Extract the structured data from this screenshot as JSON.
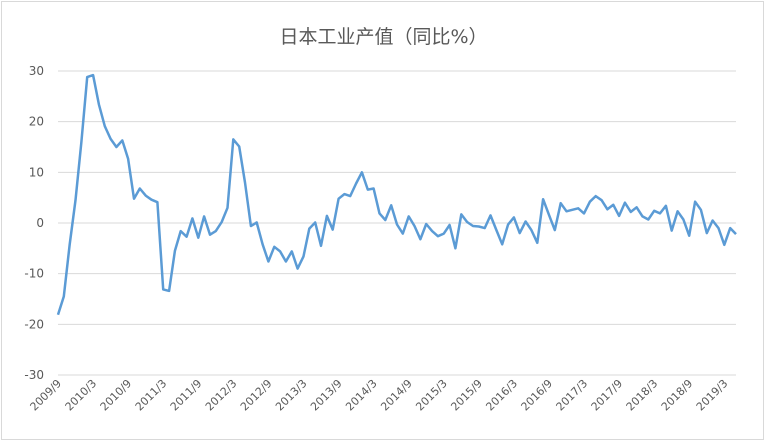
{
  "chart_data": {
    "type": "line",
    "title": "日本工业产值（同比%）",
    "xlabel": "",
    "ylabel": "",
    "ylim": [
      -30,
      30
    ],
    "yticks": [
      "30",
      "20",
      "10",
      "0",
      "-10",
      "-20",
      "-30"
    ],
    "grid": true,
    "legend": "none",
    "line_color": "#5b9bd5",
    "grid_color": "#d9d9d9",
    "x_tick_labels": [
      "2009/9",
      "2010/3",
      "2010/9",
      "2011/3",
      "2011/9",
      "2012/3",
      "2012/9",
      "2013/3",
      "2013/9",
      "2014/3",
      "2014/9",
      "2015/3",
      "2015/9",
      "2016/3",
      "2016/9",
      "2017/3",
      "2017/9",
      "2018/3",
      "2018/9",
      "2019/3"
    ],
    "start": "2009/9",
    "series": [
      {
        "values": [
          -18.1,
          -14.5,
          -4.2,
          4.5,
          16.0,
          28.8,
          29.2,
          23.4,
          19.1,
          16.6,
          15.0,
          16.3,
          12.7,
          4.8,
          6.8,
          5.4,
          4.6,
          4.1,
          -13.1,
          -13.4,
          -5.5,
          -1.6,
          -2.7,
          0.9,
          -2.9,
          1.3,
          -2.3,
          -1.6,
          0.2,
          3.0,
          16.5,
          15.1,
          8.0,
          -0.6,
          0.1,
          -4.2,
          -7.6,
          -4.7,
          -5.6,
          -7.6,
          -5.6,
          -9.0,
          -6.6,
          -1.1,
          0.1,
          -4.5,
          1.4,
          -1.3,
          4.8,
          5.7,
          5.3,
          7.8,
          10.0,
          6.6,
          6.8,
          1.9,
          0.6,
          3.5,
          -0.3,
          -2.1,
          1.3,
          -0.6,
          -3.2,
          -0.2,
          -1.6,
          -2.6,
          -2.1,
          -0.4,
          -5.0,
          1.7,
          0.2,
          -0.6,
          -0.7,
          -1.0,
          1.5,
          -1.4,
          -4.2,
          -0.3,
          1.1,
          -2.0,
          0.3,
          -1.4,
          -3.9,
          4.7,
          1.6,
          -1.4,
          3.9,
          2.3,
          2.6,
          2.9,
          1.9,
          4.2,
          5.3,
          4.5,
          2.7,
          3.6,
          1.4,
          4.0,
          2.2,
          3.1,
          1.3,
          0.7,
          2.4,
          1.9,
          3.4,
          -1.5,
          2.3,
          0.7,
          -2.5,
          4.2,
          2.6,
          -2.0,
          0.5,
          -1.0,
          -4.3,
          -1.0,
          -2.2
        ]
      }
    ]
  }
}
